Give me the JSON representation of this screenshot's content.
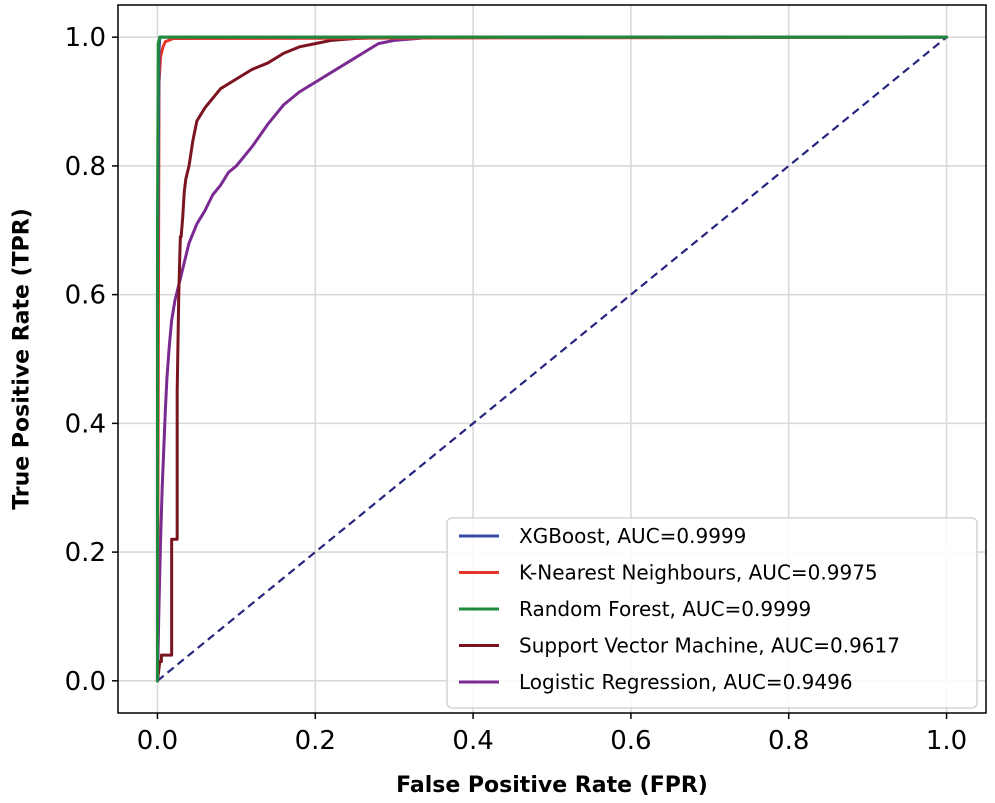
{
  "chart_data": {
    "type": "line",
    "title": "",
    "xlabel": "False Positive Rate (FPR)",
    "ylabel": "True Positive Rate (TPR)",
    "xlim": [
      -0.05,
      1.05
    ],
    "ylim": [
      -0.05,
      1.05
    ],
    "grid": true,
    "legend_position": "bottom-right",
    "xticks": [
      0.0,
      0.2,
      0.4,
      0.6,
      0.8,
      1.0
    ],
    "yticks": [
      0.0,
      0.2,
      0.4,
      0.6,
      0.8,
      1.0
    ],
    "xtick_labels": [
      "0.0",
      "0.2",
      "0.4",
      "0.6",
      "0.8",
      "1.0"
    ],
    "ytick_labels": [
      "0.0",
      "0.2",
      "0.4",
      "0.6",
      "0.8",
      "1.0"
    ],
    "diagonal": {
      "x": [
        0,
        1
      ],
      "y": [
        0,
        1
      ],
      "color": "#262680",
      "style": "dashed"
    },
    "series": [
      {
        "name": "XGBoost, AUC=0.9999",
        "color": "#3a4aa8",
        "x": [
          0,
          0,
          0.002,
          0.003,
          1.0
        ],
        "y": [
          0,
          0.6,
          0.98,
          1.0,
          1.0
        ]
      },
      {
        "name": "K-Nearest Neighbours, AUC=0.9975",
        "color": "#e8352b",
        "x": [
          0,
          0.002,
          0.004,
          0.007,
          0.01,
          0.02,
          1.0
        ],
        "y": [
          0,
          0.93,
          0.97,
          0.985,
          0.993,
          0.998,
          1.0
        ]
      },
      {
        "name": "Random Forest, AUC=0.9999",
        "color": "#1f8a3a",
        "x": [
          0,
          0,
          0.001,
          0.003,
          1.0
        ],
        "y": [
          0,
          0.7,
          0.99,
          1.0,
          1.0
        ]
      },
      {
        "name": "Support Vector Machine, AUC=0.9617",
        "color": "#7a1420",
        "x": [
          0,
          0.002,
          0.003,
          0.005,
          0.005,
          0.018,
          0.018,
          0.025,
          0.025,
          0.027,
          0.029,
          0.03,
          0.032,
          0.034,
          0.036,
          0.04,
          0.045,
          0.05,
          0.055,
          0.06,
          0.07,
          0.08,
          0.1,
          0.12,
          0.14,
          0.16,
          0.18,
          0.2,
          0.22,
          0.25,
          0.3,
          0.4,
          1.0
        ],
        "y": [
          0,
          0.02,
          0.03,
          0.03,
          0.04,
          0.04,
          0.22,
          0.22,
          0.45,
          0.6,
          0.69,
          0.69,
          0.72,
          0.76,
          0.78,
          0.8,
          0.84,
          0.87,
          0.88,
          0.89,
          0.905,
          0.92,
          0.935,
          0.95,
          0.96,
          0.975,
          0.985,
          0.99,
          0.995,
          0.998,
          1.0,
          1.0,
          1.0
        ]
      },
      {
        "name": "Logistic Regression, AUC=0.9496",
        "color": "#7b2a91",
        "x": [
          0,
          0.002,
          0.004,
          0.006,
          0.008,
          0.01,
          0.012,
          0.015,
          0.018,
          0.022,
          0.026,
          0.03,
          0.035,
          0.04,
          0.05,
          0.06,
          0.07,
          0.08,
          0.09,
          0.1,
          0.12,
          0.14,
          0.16,
          0.18,
          0.2,
          0.22,
          0.24,
          0.26,
          0.28,
          0.3,
          0.35,
          0.4,
          1.0
        ],
        "y": [
          0,
          0.12,
          0.22,
          0.3,
          0.36,
          0.42,
          0.47,
          0.52,
          0.56,
          0.59,
          0.61,
          0.63,
          0.655,
          0.68,
          0.71,
          0.73,
          0.755,
          0.77,
          0.79,
          0.8,
          0.83,
          0.865,
          0.895,
          0.915,
          0.93,
          0.945,
          0.96,
          0.975,
          0.99,
          0.995,
          1.0,
          1.0,
          1.0
        ]
      }
    ]
  }
}
